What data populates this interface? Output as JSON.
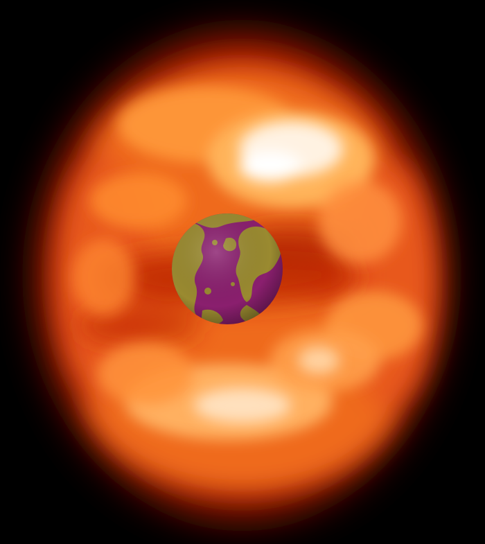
{
  "scene": {
    "subject": "glowing-plasma-cloud-around-earth",
    "colors": {
      "background": "#000000",
      "glow_outer": "#7a0a00",
      "glow_mid": "#e84a10",
      "glow_bright": "#ff9a3a",
      "glow_hot": "#ffe6c8",
      "globe_ocean": "#8a1f6e",
      "globe_land": "#9a8a30"
    }
  }
}
